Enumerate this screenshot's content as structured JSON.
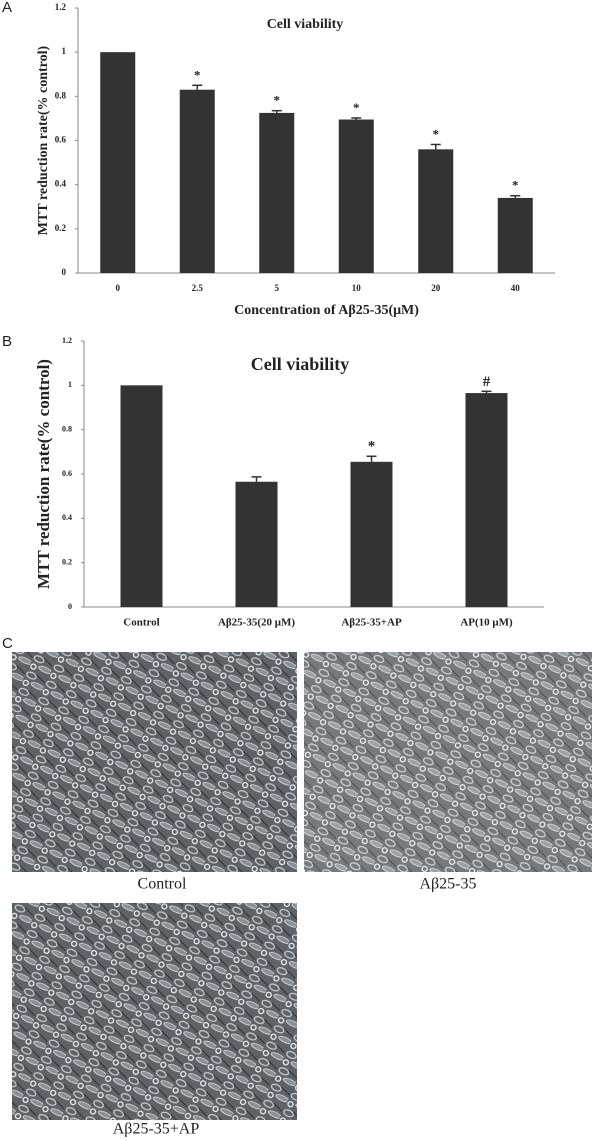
{
  "chart_data": [
    {
      "type": "bar",
      "panel_label": "A",
      "title": "Cell viability",
      "x_label": "Concentration of Aβ25-35(μM)",
      "y_label": "MTT reduction rate(% control)",
      "categories": [
        "0",
        "2.5",
        "5",
        "10",
        "20",
        "40"
      ],
      "values": [
        1,
        0.83,
        0.725,
        0.695,
        0.56,
        0.34
      ],
      "errors": [
        0,
        0.02,
        0.01,
        0.007,
        0.022,
        0.01
      ],
      "annotations": [
        null,
        "*",
        "*",
        "*",
        "*",
        "*"
      ],
      "color": "#333333",
      "ylim": [
        0,
        1.2
      ],
      "yticks": [
        0,
        0.2,
        0.4,
        0.6,
        0.8,
        1,
        1.2
      ]
    },
    {
      "type": "bar",
      "panel_label": "B",
      "title": "Cell viability",
      "y_label": "MTT reduction rate(% control)",
      "categories": [
        "Control",
        "Aβ25-35(20 μM)",
        "Aβ25-35+AP",
        "AP(10 μM)"
      ],
      "values": [
        1,
        0.565,
        0.655,
        0.965
      ],
      "errors": [
        0,
        0.022,
        0.025,
        0.008
      ],
      "annotations": [
        null,
        null,
        "*",
        "#"
      ],
      "color": "#333333",
      "ylim": [
        0,
        1.2
      ],
      "yticks": [
        0,
        0.2,
        0.4,
        0.6,
        0.8,
        1,
        1.2
      ]
    }
  ],
  "panel_c": {
    "label": "C",
    "images": [
      {
        "caption": "Control"
      },
      {
        "caption": "Aβ25-35"
      },
      {
        "caption": "Aβ25-35+AP"
      }
    ]
  }
}
